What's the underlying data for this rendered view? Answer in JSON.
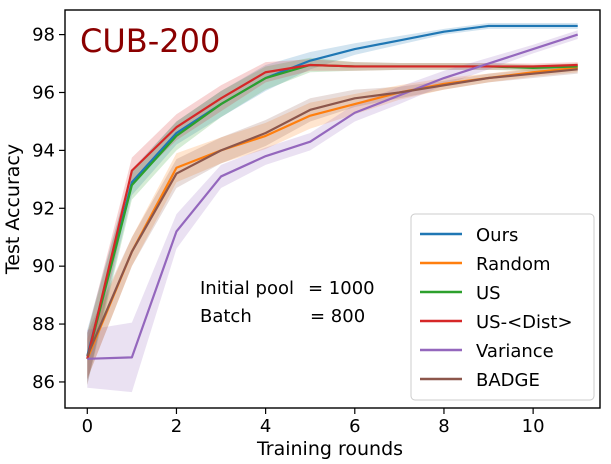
{
  "chart_data": {
    "type": "line",
    "title": "CUB-200",
    "title_color": "#8b0000",
    "xlabel": "Training rounds",
    "ylabel": "Test Accuracy",
    "xlim": [
      -0.5,
      11.5
    ],
    "ylim": [
      85.1,
      98.85
    ],
    "xticks": [
      0,
      2,
      4,
      6,
      8,
      10
    ],
    "yticks": [
      86,
      88,
      90,
      92,
      94,
      96,
      98
    ],
    "grid": false,
    "legend_position": "lower-right",
    "annotation": {
      "line1_label": "Initial pool",
      "line1_value": "= 1000",
      "line2_label": "Batch",
      "line2_value": "= 800"
    },
    "x": [
      0,
      1,
      2,
      3,
      4,
      5,
      6,
      7,
      8,
      9,
      10,
      11
    ],
    "series": [
      {
        "name": "Ours",
        "color": "#1f77b4",
        "values": [
          86.9,
          92.9,
          94.6,
          95.6,
          96.5,
          97.1,
          97.5,
          97.8,
          98.1,
          98.3,
          98.3,
          98.3
        ],
        "band": [
          0.9,
          0.45,
          0.4,
          0.45,
          0.45,
          0.3,
          0.2,
          0.15,
          0.1,
          0.1,
          0.1,
          0.1
        ]
      },
      {
        "name": "Random",
        "color": "#ff7f0e",
        "values": [
          86.8,
          90.5,
          93.4,
          94.0,
          94.5,
          95.2,
          95.6,
          96.0,
          96.3,
          96.5,
          96.7,
          96.85
        ],
        "band": [
          0.7,
          0.5,
          0.5,
          0.45,
          0.45,
          0.45,
          0.35,
          0.25,
          0.2,
          0.15,
          0.15,
          0.15
        ]
      },
      {
        "name": "US",
        "color": "#2ca02c",
        "values": [
          86.8,
          92.8,
          94.5,
          95.6,
          96.5,
          96.95,
          96.9,
          96.9,
          96.9,
          96.9,
          96.85,
          96.9
        ],
        "band": [
          0.9,
          0.5,
          0.5,
          0.45,
          0.4,
          0.25,
          0.15,
          0.12,
          0.12,
          0.12,
          0.1,
          0.1
        ]
      },
      {
        "name": "US-<Dist>",
        "color": "#d62728",
        "values": [
          86.8,
          93.3,
          94.8,
          95.8,
          96.7,
          96.95,
          96.9,
          96.9,
          96.9,
          96.9,
          96.9,
          96.95
        ],
        "band": [
          0.9,
          0.45,
          0.45,
          0.45,
          0.35,
          0.2,
          0.15,
          0.12,
          0.12,
          0.12,
          0.1,
          0.1
        ]
      },
      {
        "name": "Variance",
        "color": "#9467bd",
        "values": [
          86.8,
          86.85,
          91.2,
          93.1,
          93.8,
          94.3,
          95.3,
          95.9,
          96.5,
          97.0,
          97.5,
          98.0
        ],
        "band": [
          1.0,
          1.2,
          0.6,
          0.4,
          0.3,
          0.3,
          0.3,
          0.3,
          0.25,
          0.2,
          0.15,
          0.15
        ]
      },
      {
        "name": "BADGE",
        "color": "#8c564b",
        "values": [
          86.9,
          90.5,
          93.2,
          94.0,
          94.6,
          95.4,
          95.8,
          96.0,
          96.25,
          96.5,
          96.65,
          96.8
        ],
        "band": [
          0.8,
          0.5,
          0.5,
          0.45,
          0.45,
          0.4,
          0.3,
          0.2,
          0.15,
          0.15,
          0.15,
          0.15
        ]
      }
    ]
  }
}
